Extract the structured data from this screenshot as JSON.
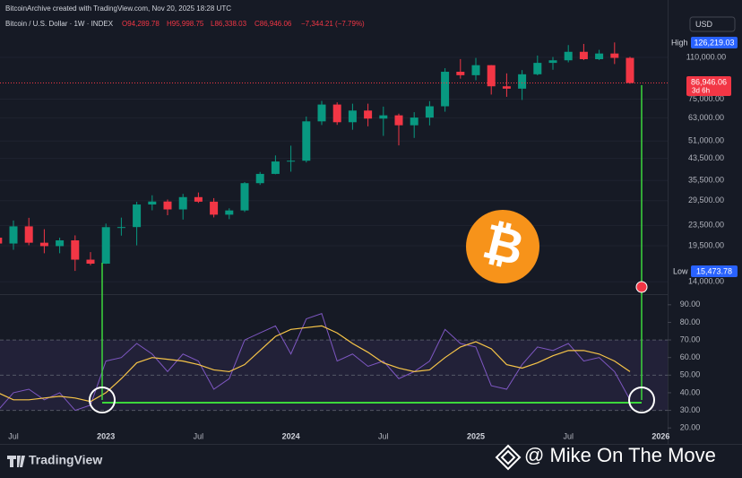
{
  "header": {
    "credit": "BitcoinArchive created with TradingView.com, Nov 20, 2025 18:28 UTC",
    "symbol": "Bitcoin / U.S. Dollar · 1W · INDEX",
    "open": "O94,289.78",
    "high": "H95,998.75",
    "low": "L86,338.03",
    "close": "C86,946.06",
    "change": "−7,344.21 (−7.79%)",
    "currency": "USD"
  },
  "price_labels": {
    "high_tag": "High",
    "high_value": "126,219.03",
    "low_tag": "Low",
    "low_value": "15,473.78",
    "last_value": "86,946.06",
    "countdown": "3d 6h"
  },
  "footer": {
    "brand": "TradingView",
    "watermark": "@ Mike On The Move"
  },
  "chart_data": [
    {
      "type": "candlestick",
      "log_scale": true,
      "grid": true,
      "up_color": "#089981",
      "down_color": "#f23645",
      "open": [
        21000,
        19900,
        23300,
        20050,
        19430,
        20490,
        17160,
        16540,
        23130,
        23150,
        28480,
        29270,
        27220,
        30480,
        29230,
        25940,
        26970,
        34650,
        37720,
        42280,
        42580,
        61130,
        71330,
        60640,
        67500,
        62700,
        64600,
        58970,
        63300,
        70200,
        96400,
        93400,
        102400,
        84350,
        82550,
        94200,
        104600,
        107100,
        115800,
        108200,
        114000,
        109500
      ],
      "high": [
        23000,
        24600,
        25200,
        22700,
        21000,
        21450,
        18390,
        23900,
        25250,
        29200,
        31000,
        29820,
        31400,
        31800,
        30200,
        27500,
        35000,
        38400,
        44700,
        48900,
        63900,
        73800,
        72800,
        71900,
        71900,
        70000,
        65600,
        66500,
        73600,
        99600,
        108300,
        109400,
        102500,
        95000,
        97900,
        111900,
        110500,
        123200,
        124500,
        117900,
        126219.03,
        110600
      ],
      "low": [
        17600,
        18800,
        19600,
        18200,
        18200,
        15473.78,
        16300,
        16500,
        21400,
        19570,
        27000,
        25800,
        24800,
        28900,
        25300,
        24900,
        26600,
        34100,
        37600,
        38500,
        41900,
        59100,
        59200,
        56600,
        58400,
        53500,
        49000,
        52500,
        58900,
        66800,
        90500,
        89200,
        78200,
        76600,
        74400,
        93300,
        98200,
        105100,
        107300,
        107300,
        103500,
        86338.03
      ],
      "close": [
        19900,
        23300,
        20050,
        19430,
        20490,
        17160,
        16540,
        23130,
        23150,
        28480,
        29270,
        27220,
        30480,
        29230,
        25940,
        26970,
        34650,
        37720,
        42280,
        42580,
        61130,
        71330,
        60640,
        67500,
        62700,
        64600,
        58970,
        63300,
        70200,
        96400,
        93400,
        102400,
        84350,
        82550,
        94200,
        104600,
        107100,
        115800,
        108200,
        114000,
        109500,
        86946.06
      ],
      "ylim": [
        12500,
        142000
      ],
      "yticks": [
        {
          "value": 110000,
          "label": "110,000.00"
        },
        {
          "value": 75000,
          "label": "75,000.00"
        },
        {
          "value": 63000,
          "label": "63,000.00"
        },
        {
          "value": 51000,
          "label": "51,000.00"
        },
        {
          "value": 43500,
          "label": "43,500.00"
        },
        {
          "value": 35500,
          "label": "35,500.00"
        },
        {
          "value": 29500,
          "label": "29,500.00"
        },
        {
          "value": 23500,
          "label": "23,500.00"
        },
        {
          "value": 19500,
          "label": "19,500.00"
        },
        {
          "value": 14000,
          "label": "14,000.00"
        }
      ]
    },
    {
      "type": "line",
      "categories": [
        null,
        "Jul",
        null,
        null,
        null,
        null,
        null,
        "2023",
        null,
        null,
        null,
        null,
        null,
        "Jul",
        null,
        null,
        null,
        null,
        null,
        "2024",
        null,
        null,
        null,
        null,
        null,
        "Jul",
        null,
        null,
        null,
        null,
        null,
        "2025",
        null,
        null,
        null,
        null,
        null,
        "Jul",
        null,
        null,
        null,
        null,
        null,
        "2026"
      ],
      "series": [
        {
          "color": "#7e57c2",
          "values": [
            30,
            40,
            42,
            36,
            40,
            30,
            33,
            58,
            60,
            68,
            62,
            52,
            62,
            58,
            42,
            48,
            70,
            74,
            78,
            62,
            82,
            85,
            58,
            62,
            55,
            58,
            48,
            52,
            58,
            76,
            68,
            66,
            44,
            42,
            56,
            66,
            64,
            68,
            58,
            60,
            52,
            36,
            null,
            null
          ]
        },
        {
          "color": "#f7c548",
          "values": [
            40,
            36,
            36,
            37,
            38,
            37,
            35,
            40,
            48,
            57,
            60,
            59,
            58,
            56,
            53,
            52,
            56,
            64,
            72,
            76,
            77,
            78,
            74,
            68,
            63,
            57,
            54,
            52,
            53,
            60,
            66,
            69,
            65,
            56,
            54,
            57,
            61,
            64,
            64,
            62,
            58,
            52,
            null,
            null
          ]
        }
      ],
      "levels": [
        30,
        50,
        70
      ],
      "ylim": [
        15,
        95
      ],
      "yticks": [
        {
          "value": 90,
          "label": "90.00"
        },
        {
          "value": 80,
          "label": "80.00"
        },
        {
          "value": 70,
          "label": "70.00"
        },
        {
          "value": 60,
          "label": "60.00"
        },
        {
          "value": 50,
          "label": "50.00"
        },
        {
          "value": 40,
          "label": "40.00"
        },
        {
          "value": 30,
          "label": "30.00"
        },
        {
          "value": 20,
          "label": "20.00"
        }
      ]
    }
  ]
}
